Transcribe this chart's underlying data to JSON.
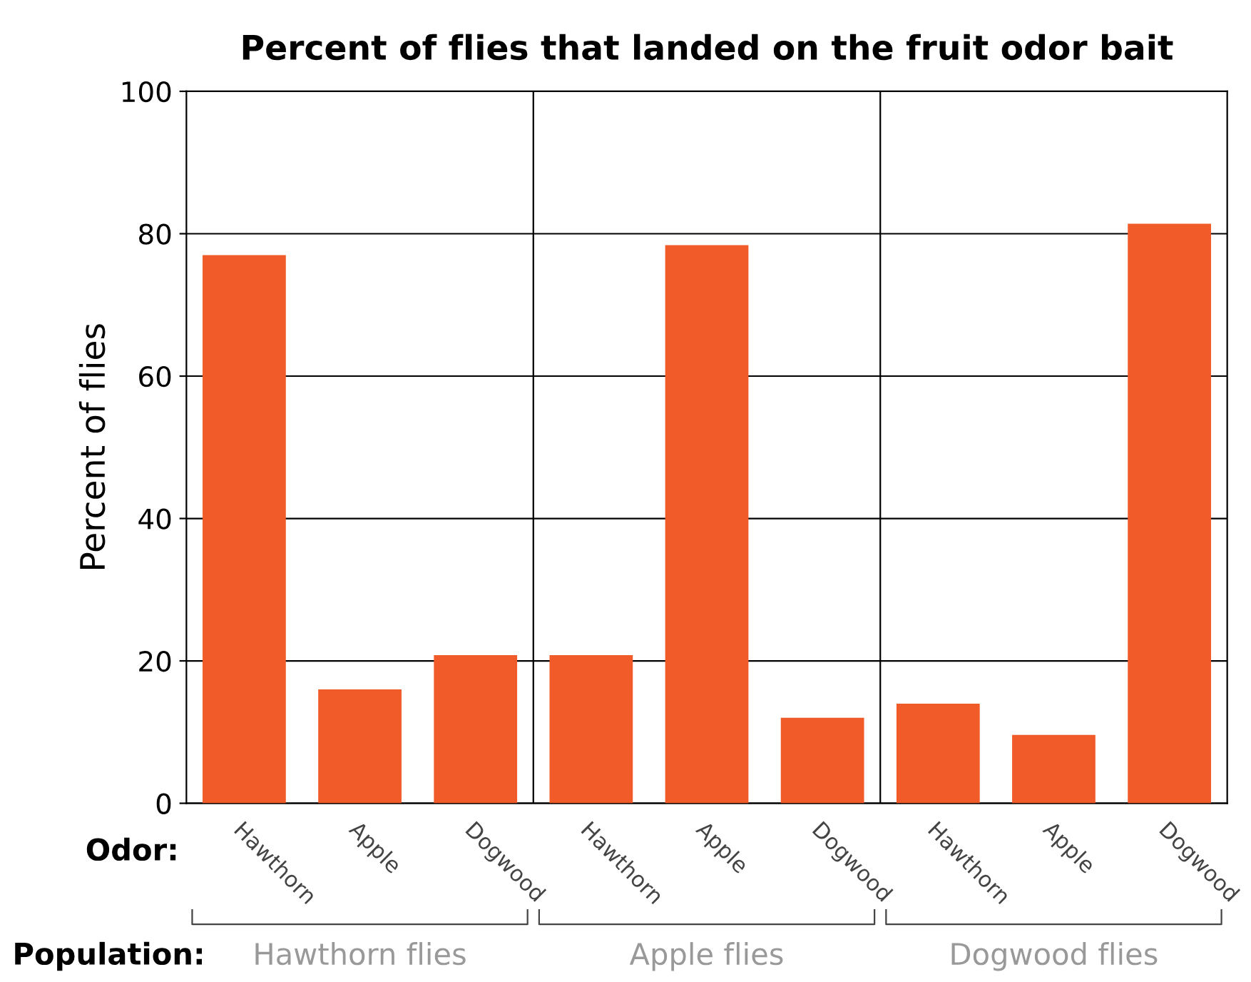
{
  "chart_data": {
    "type": "bar",
    "title": "Percent of flies that landed on the fruit odor bait",
    "ylabel": "Percent of flies",
    "xlabel": "Odor:",
    "categories": [
      "Hawthorn",
      "Apple",
      "Dogwood",
      "Hawthorn",
      "Apple",
      "Dogwood",
      "Hawthorn",
      "Apple",
      "Dogwood"
    ],
    "values": [
      77,
      16,
      20.8,
      20.8,
      78.4,
      12,
      14,
      9.6,
      81.4
    ],
    "color": "#f15a29",
    "ylim": [
      0,
      100
    ],
    "yticks": [
      0,
      20,
      40,
      60,
      80,
      100
    ],
    "grid": "y",
    "annotations": [
      "Population:",
      "Hawthorn flies",
      "Apple flies",
      "Dogwood flies"
    ]
  }
}
